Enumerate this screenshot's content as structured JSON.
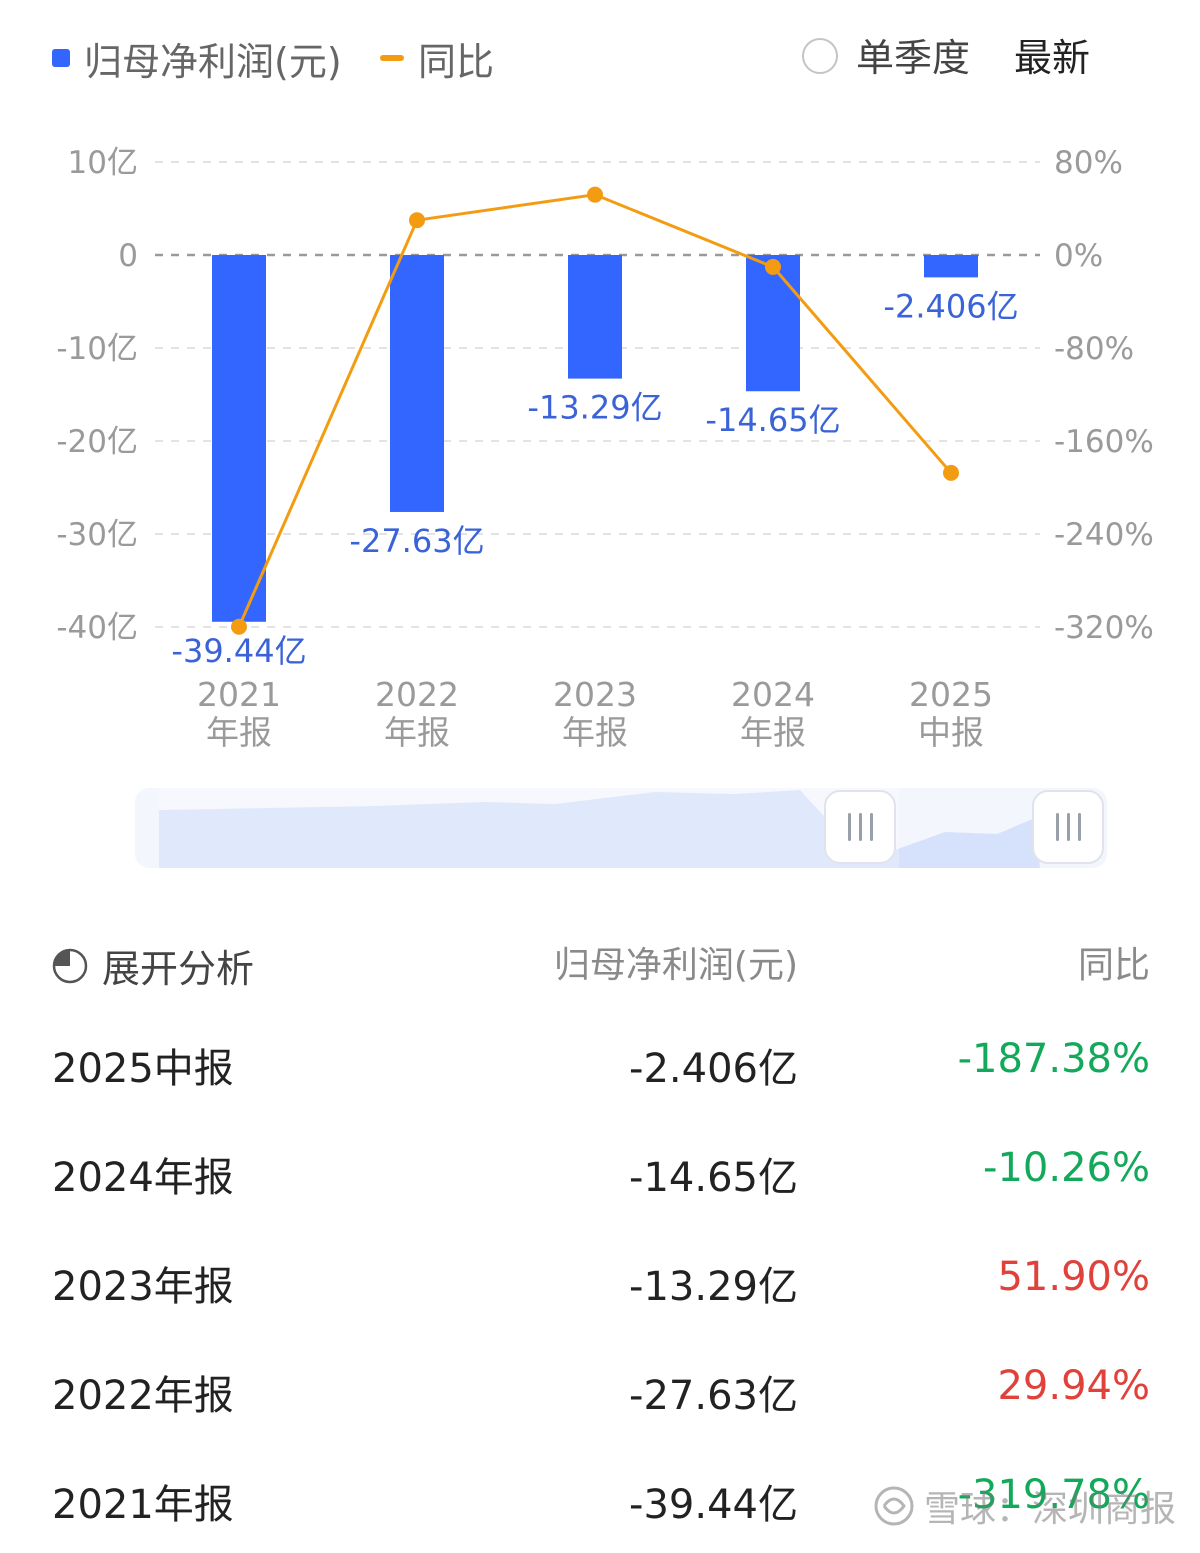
{
  "legend": {
    "bar_label": "归母净利润(元)",
    "line_label": "同比",
    "toggle_label": "单季度",
    "latest_label": "最新"
  },
  "colors": {
    "bar": "#3366ff",
    "line": "#f39c12",
    "positive": "#e0413a",
    "negative": "#13a95a"
  },
  "chart_data": {
    "type": "bar",
    "categories": [
      [
        "2021",
        "年报"
      ],
      [
        "2022",
        "年报"
      ],
      [
        "2023",
        "年报"
      ],
      [
        "2024",
        "年报"
      ],
      [
        "2025",
        "中报"
      ]
    ],
    "series": [
      {
        "name": "归母净利润(元)",
        "type": "bar",
        "axis": "left",
        "values": [
          -39.44,
          -27.63,
          -13.29,
          -14.65,
          -2.406
        ],
        "labels": [
          "-39.44亿",
          "-27.63亿",
          "-13.29亿",
          "-14.65亿",
          "-2.406亿"
        ]
      },
      {
        "name": "同比",
        "type": "line",
        "axis": "right",
        "values": [
          -319.78,
          29.94,
          51.9,
          -10.26,
          -187.38
        ]
      }
    ],
    "y_left": {
      "range": [
        -40,
        10
      ],
      "ticks": [
        10,
        0,
        -10,
        -20,
        -30,
        -40
      ],
      "tick_labels": [
        "10亿",
        "0",
        "-10亿",
        "-20亿",
        "-30亿",
        "-40亿"
      ]
    },
    "y_right": {
      "range": [
        -320,
        80
      ],
      "ticks": [
        80,
        0,
        -80,
        -160,
        -240,
        -320
      ],
      "tick_labels": [
        "80%",
        "0%",
        "-80%",
        "-160%",
        "-240%",
        "-320%"
      ]
    },
    "grid": true,
    "legend_position": "top-left"
  },
  "table": {
    "expand_label": "展开分析",
    "col_value": "归母净利润(元)",
    "col_yoy": "同比",
    "rows": [
      {
        "period": "2025中报",
        "value": "-2.406亿",
        "yoy": "-187.38%",
        "trend": "down"
      },
      {
        "period": "2024年报",
        "value": "-14.65亿",
        "yoy": "-10.26%",
        "trend": "down"
      },
      {
        "period": "2023年报",
        "value": "-13.29亿",
        "yoy": "51.90%",
        "trend": "up"
      },
      {
        "period": "2022年报",
        "value": "-27.63亿",
        "yoy": "29.94%",
        "trend": "up"
      },
      {
        "period": "2021年报",
        "value": "-39.44亿",
        "yoy": "-319.78%",
        "trend": "down"
      }
    ]
  },
  "watermark": {
    "text": "雪球：深圳商报"
  }
}
